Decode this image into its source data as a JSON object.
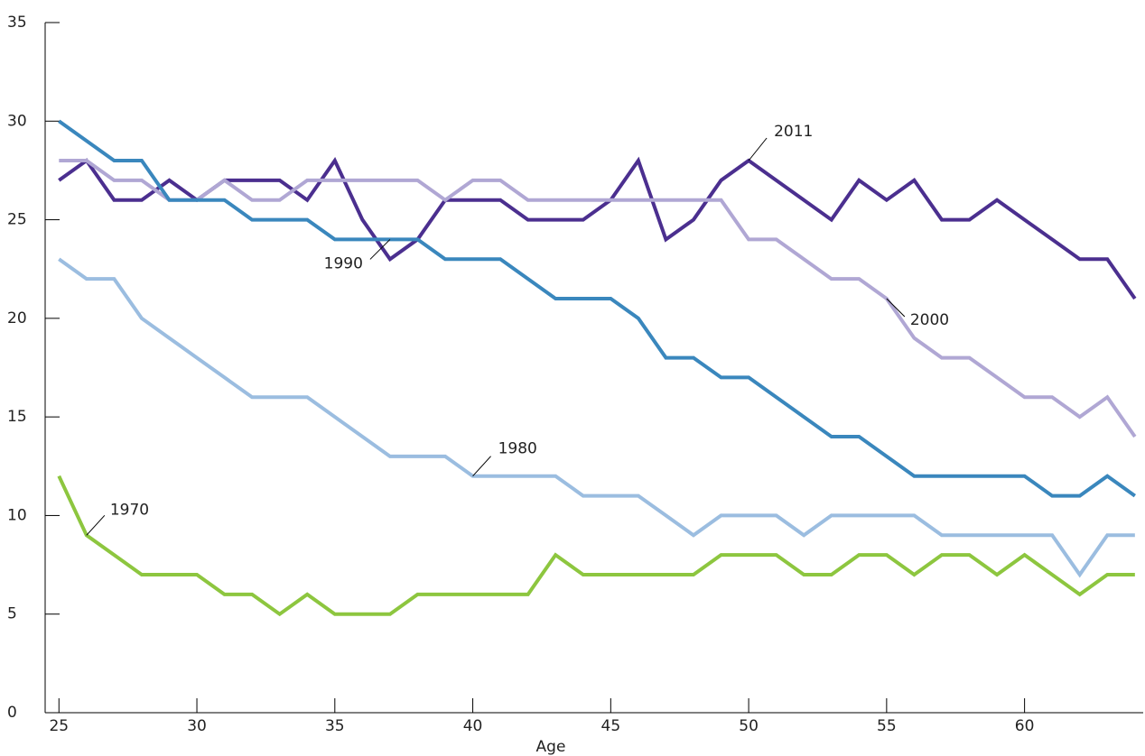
{
  "chart_data": {
    "type": "line",
    "x_label": "Age",
    "x": [
      25,
      26,
      27,
      28,
      29,
      30,
      31,
      32,
      33,
      34,
      35,
      36,
      37,
      38,
      39,
      40,
      41,
      42,
      43,
      44,
      45,
      46,
      47,
      48,
      49,
      50,
      51,
      52,
      53,
      54,
      55,
      56,
      57,
      58,
      59,
      60,
      61,
      62,
      63,
      64
    ],
    "xlim": [
      24.5,
      64.3
    ],
    "xticks": [
      25,
      30,
      35,
      40,
      45,
      50,
      55,
      60
    ],
    "ylim": [
      0,
      35
    ],
    "yticks": [
      0,
      5,
      10,
      15,
      20,
      25,
      30,
      35
    ],
    "series": [
      {
        "name": "2011",
        "color": "#4b2f8f",
        "values": [
          27,
          28,
          26,
          26,
          27,
          26,
          27,
          27,
          27,
          26,
          28,
          25,
          23,
          24,
          26,
          26,
          26,
          25,
          25,
          25,
          26,
          28,
          24,
          25,
          27,
          28,
          27,
          26,
          25,
          27,
          26,
          27,
          25,
          25,
          26,
          25,
          24,
          23,
          23,
          21
        ]
      },
      {
        "name": "2000",
        "color": "#b0a7d4",
        "values": [
          28,
          28,
          27,
          27,
          26,
          26,
          27,
          26,
          26,
          27,
          27,
          27,
          27,
          27,
          26,
          27,
          27,
          26,
          26,
          26,
          26,
          26,
          26,
          26,
          26,
          24,
          24,
          23,
          22,
          22,
          21,
          19,
          18,
          18,
          17,
          16,
          16,
          15,
          16,
          14
        ]
      },
      {
        "name": "1990",
        "color": "#3a87bd",
        "values": [
          30,
          29,
          28,
          28,
          26,
          26,
          26,
          25,
          25,
          25,
          24,
          24,
          24,
          24,
          23,
          23,
          23,
          22,
          21,
          21,
          21,
          20,
          18,
          18,
          17,
          17,
          16,
          15,
          14,
          14,
          13,
          12,
          12,
          12,
          12,
          12,
          11,
          11,
          12,
          11
        ]
      },
      {
        "name": "1980",
        "color": "#9bbde0",
        "values": [
          23,
          22,
          22,
          20,
          19,
          18,
          17,
          16,
          16,
          16,
          15,
          14,
          13,
          13,
          13,
          12,
          12,
          12,
          12,
          11,
          11,
          11,
          10,
          9,
          10,
          10,
          10,
          9,
          10,
          10,
          10,
          10,
          9,
          9,
          9,
          9,
          9,
          7,
          9,
          9
        ]
      },
      {
        "name": "1970",
        "color": "#8dc63f",
        "values": [
          12,
          9,
          8,
          7,
          7,
          7,
          6,
          6,
          5,
          6,
          5,
          5,
          5,
          6,
          6,
          6,
          6,
          6,
          8,
          7,
          7,
          7,
          7,
          7,
          8,
          8,
          8,
          7,
          7,
          8,
          8,
          7,
          8,
          8,
          7,
          8,
          7,
          6,
          7,
          7
        ]
      }
    ]
  }
}
